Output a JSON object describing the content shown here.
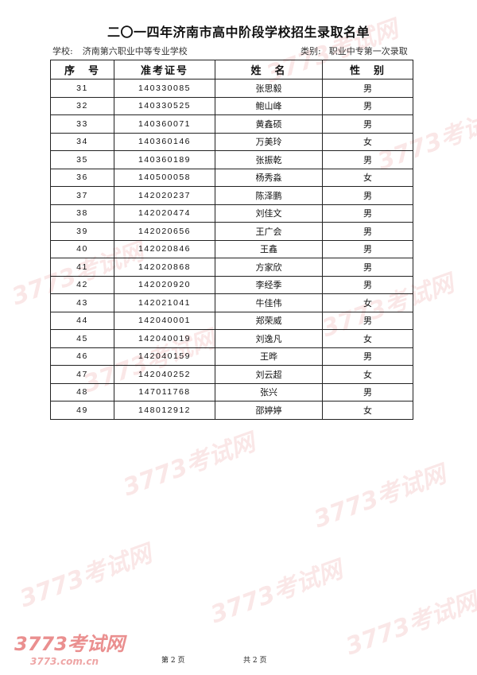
{
  "title": "二〇一四年济南市高中阶段学校招生录取名单",
  "school_label": "学校:",
  "school": "济南第六职业中等专业学校",
  "category_label": "类别:",
  "category": "职业中专第一次录取",
  "columns": [
    "序　号",
    "准考证号",
    "姓　名",
    "性　别"
  ],
  "rows": [
    [
      "31",
      "140330085",
      "张思毅",
      "男"
    ],
    [
      "32",
      "140330525",
      "鲍山峰",
      "男"
    ],
    [
      "33",
      "140360071",
      "黄鑫硕",
      "男"
    ],
    [
      "34",
      "140360146",
      "万美玲",
      "女"
    ],
    [
      "35",
      "140360189",
      "张振乾",
      "男"
    ],
    [
      "36",
      "140500058",
      "杨秀淼",
      "女"
    ],
    [
      "37",
      "142020237",
      "陈泽鹏",
      "男"
    ],
    [
      "38",
      "142020474",
      "刘佳文",
      "男"
    ],
    [
      "39",
      "142020656",
      "王广会",
      "男"
    ],
    [
      "40",
      "142020846",
      "王鑫",
      "男"
    ],
    [
      "41",
      "142020868",
      "方家欣",
      "男"
    ],
    [
      "42",
      "142020920",
      "李经季",
      "男"
    ],
    [
      "43",
      "142021041",
      "牛佳伟",
      "女"
    ],
    [
      "44",
      "142040001",
      "郑荣威",
      "男"
    ],
    [
      "45",
      "142040019",
      "刘逸凡",
      "女"
    ],
    [
      "46",
      "142040159",
      "王晔",
      "男"
    ],
    [
      "47",
      "142040252",
      "刘云超",
      "女"
    ],
    [
      "48",
      "147011768",
      "张兴",
      "男"
    ],
    [
      "49",
      "148012912",
      "邵婷婷",
      "女"
    ]
  ],
  "footer": {
    "page": "第 2 页",
    "total": "共 2 页"
  },
  "watermark": {
    "text": "3773考试网",
    "url": "3773.com.cn",
    "color": "#e46a6a"
  }
}
